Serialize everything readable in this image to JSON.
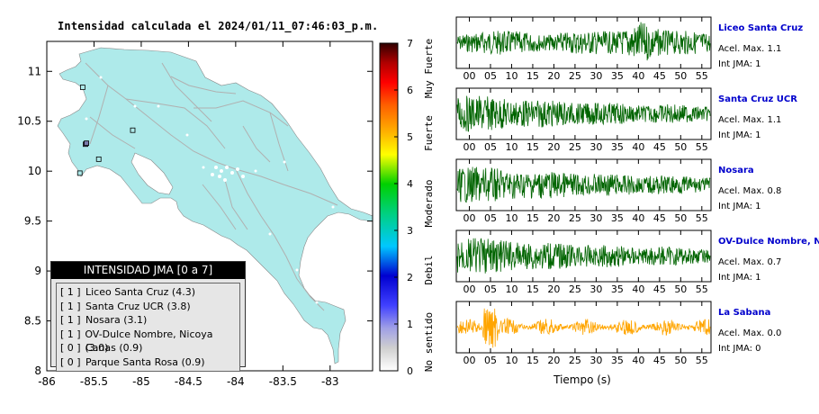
{
  "map": {
    "title": "Intensidad calculada el 2024/01/11_07:46:03_p.m.",
    "y_ticks": [
      "11",
      "10.5",
      "10",
      "9.5",
      "9",
      "8.5",
      "8"
    ],
    "x_ticks": [
      "-86",
      "-85.5",
      "-85",
      "-84.5",
      "-84",
      "-83.5",
      "-83"
    ],
    "land_color": "#aeeaea",
    "stations": [
      {
        "name": "Liceo Santa Cruz",
        "lon": -85.59,
        "lat": 10.27
      },
      {
        "name": "Santa Cruz UCR",
        "lon": -85.58,
        "lat": 10.28
      },
      {
        "name": "Nosara",
        "lon": -85.65,
        "lat": 9.98
      },
      {
        "name": "OV-Dulce Nombre, Nicoya",
        "lon": -85.45,
        "lat": 10.12
      },
      {
        "name": "Canas",
        "lon": -85.09,
        "lat": 10.41
      },
      {
        "name": "Parque Santa Rosa",
        "lon": -85.62,
        "lat": 10.84
      }
    ]
  },
  "colorbar": {
    "ticks": [
      "7",
      "6",
      "5",
      "4",
      "3",
      "2",
      "1",
      "0"
    ],
    "labels": [
      "Muy Fuerte",
      "Fuerte",
      "Moderado",
      "Debil",
      "No sentido"
    ]
  },
  "legend": {
    "title": "INTENSIDAD JMA [0 a 7]",
    "items": [
      {
        "int": "[ 1 ]",
        "label": "Liceo Santa Cruz (4.3)"
      },
      {
        "int": "[ 1 ]",
        "label": "Santa Cruz UCR (3.8)"
      },
      {
        "int": "[ 1 ]",
        "label": "Nosara (3.1)"
      },
      {
        "int": "[ 1 ]",
        "label": "OV-Dulce Nombre, Nicoya (3.0)"
      },
      {
        "int": "[ 0 ]",
        "label": "Canas (0.9)"
      },
      {
        "int": "[ 0 ]",
        "label": "Parque Santa Rosa (0.9)"
      }
    ]
  },
  "traces": {
    "time_ticks": [
      "00",
      "05",
      "10",
      "15",
      "20",
      "25",
      "30",
      "35",
      "40",
      "45",
      "50",
      "55"
    ],
    "xlabel": "Tiempo (s)",
    "panels": [
      {
        "station": "Liceo Santa Cruz",
        "acel": "Acel. Max. 1.1",
        "int": "Int JMA: 1",
        "color": "#006400",
        "amp": 0.95
      },
      {
        "station": "Santa Cruz UCR",
        "acel": "Acel. Max. 1.1",
        "int": "Int JMA: 1",
        "color": "#006400",
        "amp": 0.9
      },
      {
        "station": "Nosara",
        "acel": "Acel. Max. 0.8",
        "int": "Int JMA: 1",
        "color": "#006400",
        "amp": 0.9
      },
      {
        "station": "OV-Dulce Nombre, Nicoya",
        "acel": "Acel. Max. 0.7",
        "int": "Int JMA: 1",
        "color": "#006400",
        "amp": 0.9
      },
      {
        "station": "La Sabana",
        "acel": "Acel. Max. 0.0",
        "int": "Int JMA: 0",
        "color": "#ffa500",
        "amp": 0.95
      }
    ]
  }
}
